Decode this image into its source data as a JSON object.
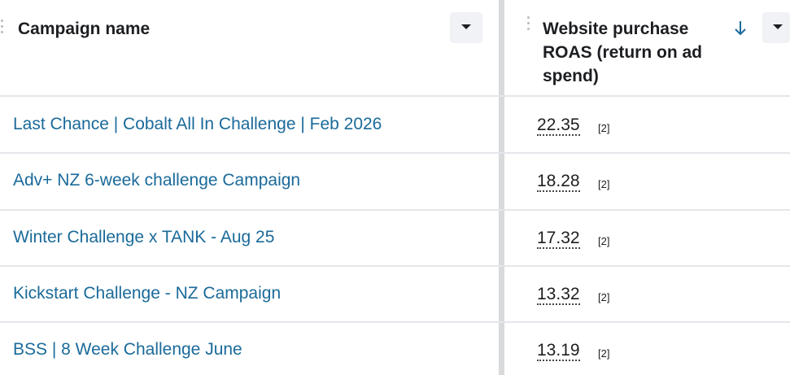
{
  "table": {
    "columns": [
      "Campaign name",
      "Website purchase ROAS (return on ad spend)"
    ],
    "rows": [
      [
        "Last Chance | Cobalt All In Challenge | Feb 2026",
        22.35,
        "[2]"
      ],
      [
        "Adv+ NZ 6-week challenge Campaign",
        18.28,
        "[2]"
      ],
      [
        "Winter Challenge x TANK - Aug 25",
        17.32,
        "[2]"
      ],
      [
        "Kickstart Challenge - NZ Campaign",
        13.32,
        "[2]"
      ],
      [
        "BSS | 8 Week Challenge June",
        13.19,
        "[2]"
      ]
    ]
  }
}
